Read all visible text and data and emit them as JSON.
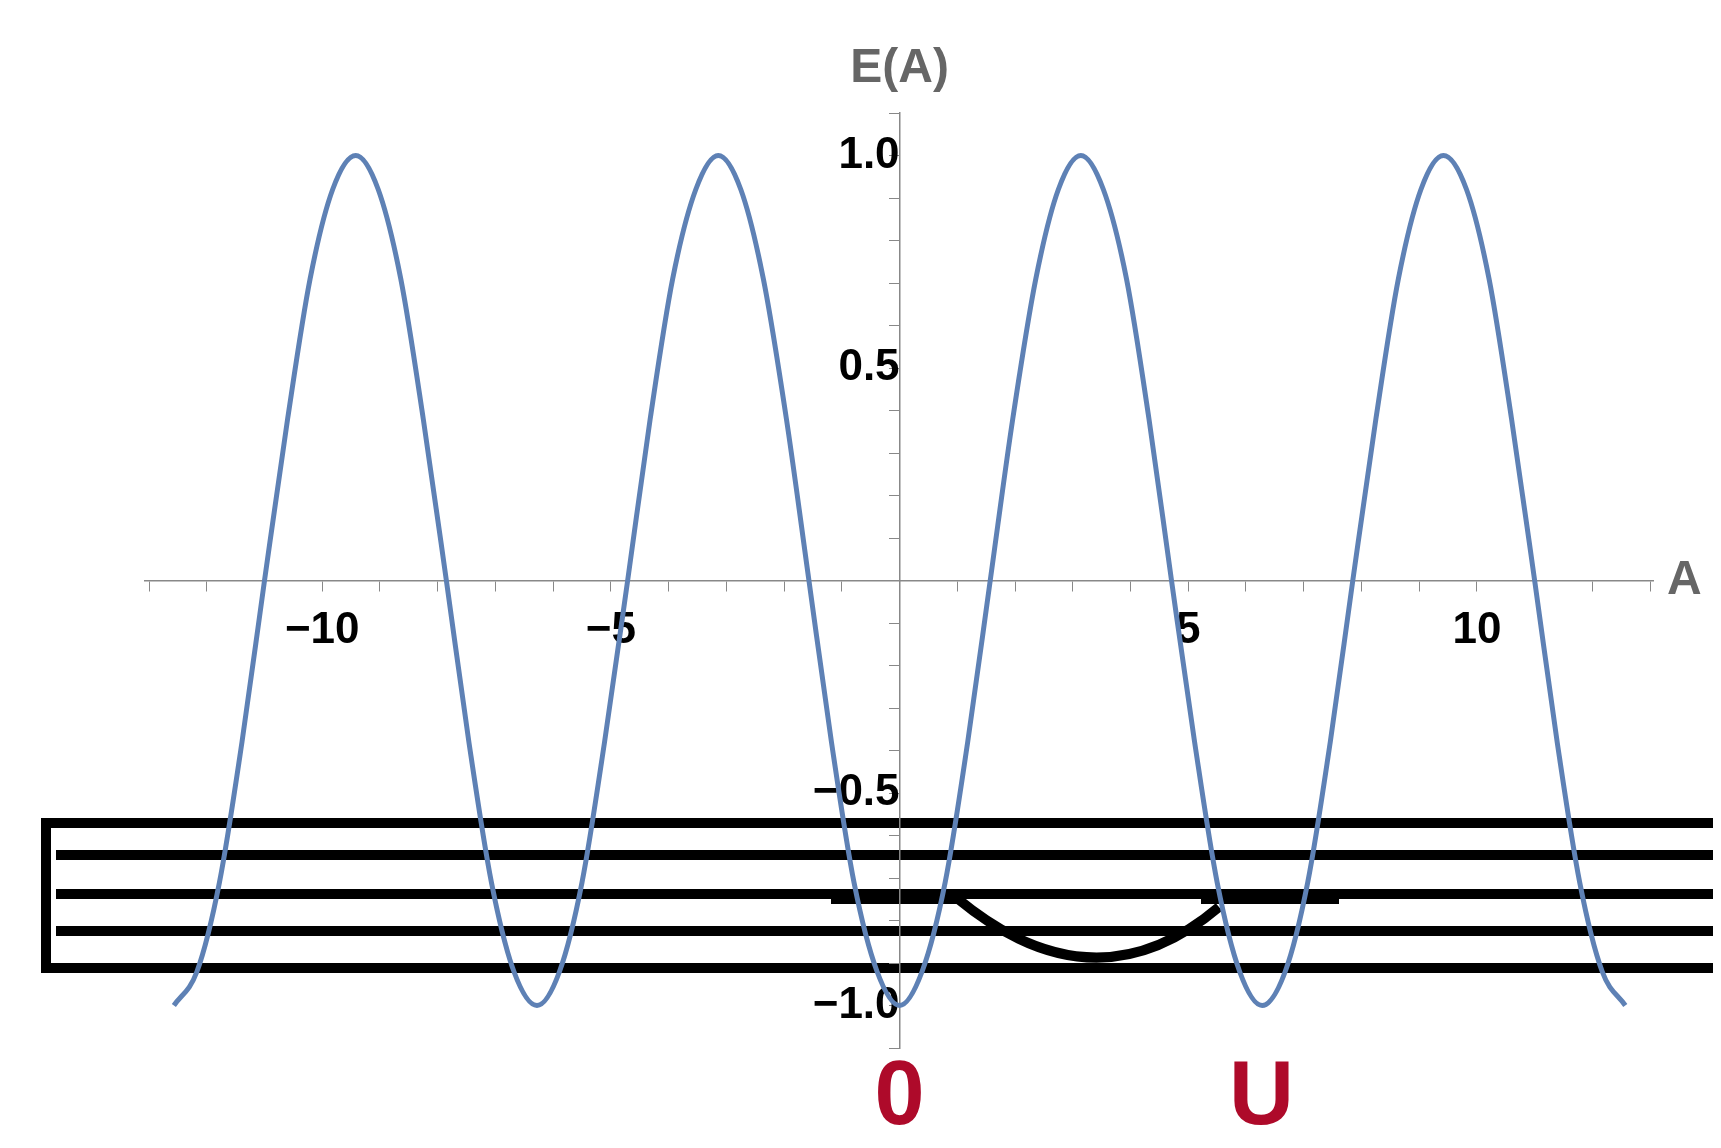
{
  "chart_data": {
    "type": "line",
    "xlabel": "A",
    "ylabel": "E(A)",
    "x": [
      -12.57,
      -12.17,
      -11.78,
      -11.39,
      -11.0,
      -10.6,
      -10.21,
      -9.82,
      -9.42,
      -9.03,
      -8.64,
      -8.25,
      -7.85,
      -7.46,
      -7.07,
      -6.68,
      -6.28,
      -5.89,
      -5.5,
      -5.11,
      -4.71,
      -4.32,
      -3.93,
      -3.53,
      -3.14,
      -2.75,
      -2.36,
      -1.96,
      -1.57,
      -1.18,
      -0.79,
      -0.39,
      0,
      0.39,
      0.79,
      1.18,
      1.57,
      1.96,
      2.36,
      2.75,
      3.14,
      3.53,
      3.93,
      4.32,
      4.71,
      5.11,
      5.5,
      5.89,
      6.28,
      6.68,
      7.07,
      7.46,
      7.85,
      8.25,
      8.64,
      9.03,
      9.42,
      9.82,
      10.21,
      10.6,
      11.0,
      11.39,
      11.78,
      12.17,
      12.57
    ],
    "series": [
      {
        "color": "#5e81b5",
        "values": [
          -1,
          -0.92,
          -0.71,
          -0.38,
          0,
          0.38,
          0.71,
          0.92,
          1,
          0.92,
          0.71,
          0.38,
          0,
          -0.38,
          -0.71,
          -0.92,
          -1,
          -0.92,
          -0.71,
          -0.38,
          0,
          0.38,
          0.71,
          0.92,
          1,
          0.92,
          0.71,
          0.38,
          0,
          -0.38,
          -0.71,
          -0.92,
          -1,
          -0.92,
          -0.71,
          -0.38,
          0,
          0.38,
          0.71,
          0.92,
          1,
          0.92,
          0.71,
          0.38,
          0,
          -0.38,
          -0.71,
          -0.92,
          -1,
          -0.92,
          -0.71,
          -0.38,
          0,
          0.38,
          0.71,
          0.92,
          1,
          0.92,
          0.71,
          0.38,
          0,
          -0.38,
          -0.71,
          -0.92,
          -1
        ]
      }
    ],
    "xlim": [
      -13.07,
      13.05
    ],
    "xticks": [
      {
        "value": -13,
        "label": null
      },
      {
        "value": -12,
        "label": null
      },
      {
        "value": -11,
        "label": null
      },
      {
        "value": -10,
        "label": "−10"
      },
      {
        "value": -9,
        "label": null
      },
      {
        "value": -8,
        "label": null
      },
      {
        "value": -7,
        "label": null
      },
      {
        "value": -6,
        "label": null
      },
      {
        "value": -5,
        "label": "−5"
      },
      {
        "value": -4,
        "label": null
      },
      {
        "value": -3,
        "label": null
      },
      {
        "value": -2,
        "label": null
      },
      {
        "value": -1,
        "label": null
      },
      {
        "value": 1,
        "label": null
      },
      {
        "value": 2,
        "label": null
      },
      {
        "value": 3,
        "label": null
      },
      {
        "value": 4,
        "label": null
      },
      5,
      {
        "value": 6,
        "label": null
      },
      {
        "value": 7,
        "label": null
      },
      {
        "value": 8,
        "label": null
      },
      {
        "value": 9,
        "label": null
      },
      10,
      {
        "value": 11,
        "label": null
      },
      {
        "value": 12,
        "label": null
      },
      {
        "value": 13,
        "label": null
      }
    ],
    "ylim": [
      -1.1,
      1.1
    ],
    "yticks": [
      {
        "value": -1.1,
        "label": null
      },
      {
        "value": -1,
        "label": "−1.0"
      },
      {
        "value": -0.9,
        "label": null
      },
      {
        "value": -0.8,
        "label": null
      },
      {
        "value": -0.7,
        "label": null
      },
      {
        "value": -0.6,
        "label": null
      },
      {
        "value": -0.5,
        "label": "−0.5"
      },
      {
        "value": -0.4,
        "label": null
      },
      {
        "value": -0.3,
        "label": null
      },
      {
        "value": -0.2,
        "label": null
      },
      {
        "value": -0.1,
        "label": null
      },
      {
        "value": 0.1,
        "label": null
      },
      {
        "value": 0.2,
        "label": null
      },
      {
        "value": 0.3,
        "label": null
      },
      {
        "value": 0.4,
        "label": null
      },
      {
        "value": 0.5,
        "label": "0.5"
      },
      {
        "value": 0.6,
        "label": null
      },
      {
        "value": 0.7,
        "label": null
      },
      {
        "value": 0.8,
        "label": null
      },
      {
        "value": 0.9,
        "label": null
      },
      {
        "value": 1,
        "label": "1.0"
      },
      {
        "value": 1.1,
        "label": null
      }
    ],
    "grid": false,
    "legend": false,
    "marker": "none",
    "line_style": "solid",
    "annotations": [
      "0",
      "U"
    ]
  }
}
